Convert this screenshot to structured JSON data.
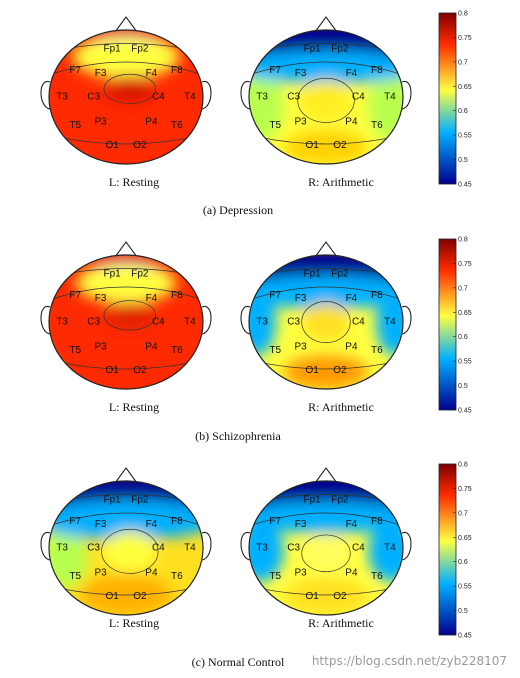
{
  "panels": [
    {
      "caption": "(a) Depression",
      "maps": [
        {
          "label": "L: Resting",
          "pattern": "depression-resting"
        },
        {
          "label": "R: Arithmetic",
          "pattern": "depression-arithmetic"
        }
      ]
    },
    {
      "caption": "(b) Schizophrenia",
      "maps": [
        {
          "label": "L: Resting",
          "pattern": "schizophrenia-resting"
        },
        {
          "label": "R: Arithmetic",
          "pattern": "schizophrenia-arithmetic"
        }
      ]
    },
    {
      "caption": "(c) Normal Control",
      "maps": [
        {
          "label": "L: Resting",
          "pattern": "normal-resting"
        },
        {
          "label": "R: Arithmetic",
          "pattern": "normal-arithmetic"
        }
      ]
    }
  ],
  "electrodes": [
    {
      "name": "Fp1",
      "u": -0.18,
      "v": -0.74
    },
    {
      "name": "Fp2",
      "u": 0.18,
      "v": -0.74
    },
    {
      "name": "F7",
      "u": -0.66,
      "v": -0.42
    },
    {
      "name": "F3",
      "u": -0.33,
      "v": -0.37
    },
    {
      "name": "F4",
      "u": 0.33,
      "v": -0.37
    },
    {
      "name": "F8",
      "u": 0.66,
      "v": -0.42
    },
    {
      "name": "T3",
      "u": -0.83,
      "v": -0.02
    },
    {
      "name": "C3",
      "u": -0.42,
      "v": -0.02
    },
    {
      "name": "C4",
      "u": 0.42,
      "v": -0.02
    },
    {
      "name": "T4",
      "u": 0.83,
      "v": -0.02
    },
    {
      "name": "T5",
      "u": -0.66,
      "v": 0.4
    },
    {
      "name": "P3",
      "u": -0.33,
      "v": 0.35
    },
    {
      "name": "P4",
      "u": 0.33,
      "v": 0.35
    },
    {
      "name": "T6",
      "u": 0.66,
      "v": 0.4
    },
    {
      "name": "O1",
      "u": -0.18,
      "v": 0.7
    },
    {
      "name": "O2",
      "u": 0.18,
      "v": 0.7
    }
  ],
  "colorbar": {
    "min": 0.45,
    "max": 0.8,
    "ticks": [
      "0.8",
      "0.75",
      "0.7",
      "0.65",
      "0.6",
      "0.55",
      "0.5",
      "0.45"
    ]
  },
  "colors": {
    "low": "#00008f",
    "mid_low": "#00b0ff",
    "mid": "#ffff40",
    "high": "#ff2a00",
    "max": "#800000"
  },
  "watermark": "https://blog.csdn.net/zyb228107"
}
